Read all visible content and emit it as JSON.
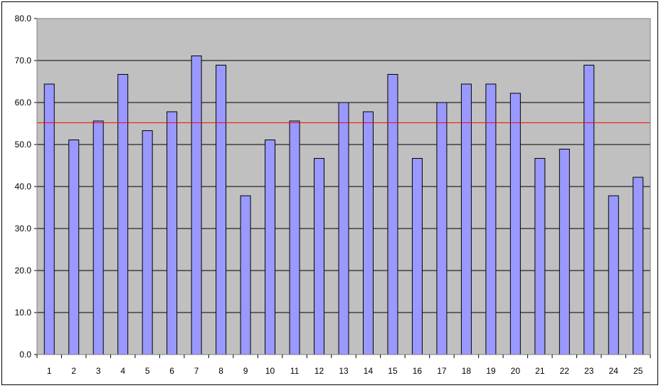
{
  "chart_data": {
    "type": "bar",
    "categories": [
      "1",
      "2",
      "3",
      "4",
      "5",
      "6",
      "7",
      "8",
      "9",
      "10",
      "11",
      "12",
      "13",
      "14",
      "15",
      "16",
      "17",
      "18",
      "19",
      "20",
      "21",
      "22",
      "23",
      "24",
      "25"
    ],
    "series": [
      {
        "values": [
          64.4,
          51.1,
          55.6,
          66.7,
          53.3,
          57.8,
          71.1,
          68.9,
          37.8,
          51.1,
          55.6,
          46.7,
          60.0,
          57.8,
          66.7,
          46.7,
          60.0,
          64.4,
          64.4,
          62.2,
          46.7,
          48.9,
          68.9,
          37.8,
          42.2
        ],
        "color": "#9999ff"
      }
    ],
    "reference_line": {
      "value": 55.2,
      "color": "#ff0000"
    },
    "ylim": [
      0,
      80
    ],
    "y_ticks": [
      "0.0",
      "10.0",
      "20.0",
      "30.0",
      "40.0",
      "50.0",
      "60.0",
      "70.0",
      "80.0"
    ],
    "grid": true,
    "plot_background": "#c0c0c0",
    "title": "",
    "xlabel": "",
    "ylabel": ""
  }
}
